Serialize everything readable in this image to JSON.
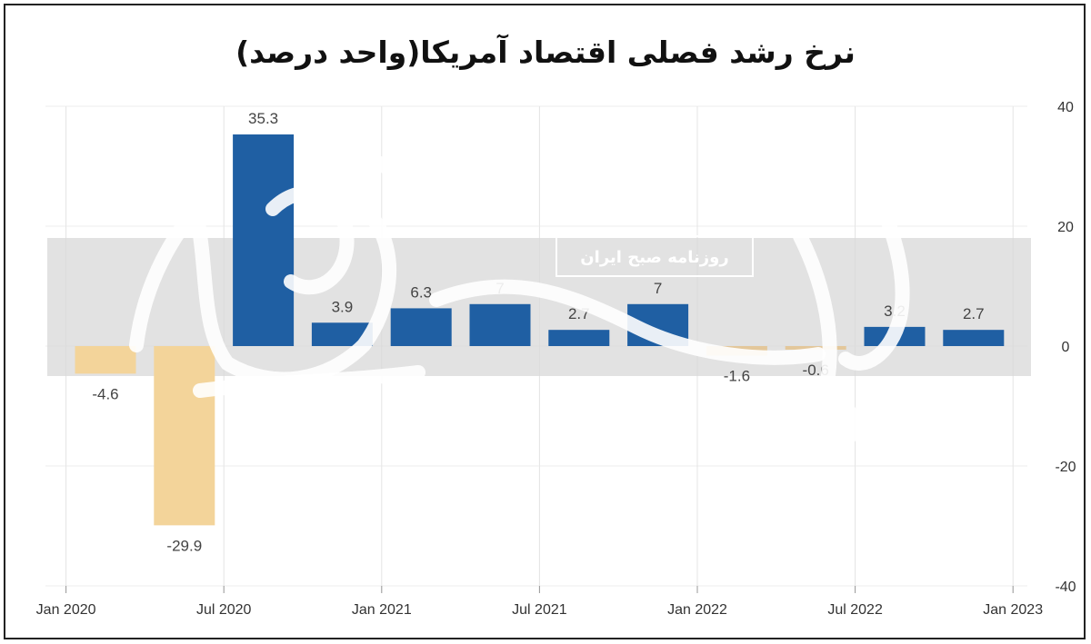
{
  "title": "نرخ رشد فصلی اقتصاد آمریکا(واحد درصد)",
  "watermark": {
    "text": "روزنامه صبح ایران"
  },
  "chart_data": {
    "type": "bar",
    "title": "نرخ رشد فصلی اقتصاد آمریکا(واحد درصد)",
    "xlabel": "",
    "ylabel": "",
    "ylim": [
      -40,
      40
    ],
    "yticks": [
      "40",
      "20",
      "0",
      "-20",
      "-40"
    ],
    "ytick_values": [
      40,
      20,
      0,
      -20,
      -40
    ],
    "xticks": [
      "Jan 2020",
      "Jul 2020",
      "Jan 2021",
      "Jul 2021",
      "Jan 2022",
      "Jul 2022",
      "Jan 2023"
    ],
    "grid": "vertical",
    "y_axis_side": "right",
    "colors": {
      "positive": "#1f5fa3",
      "negative": "#f3d49a",
      "negative_small": "#e3c79a"
    },
    "bars": [
      {
        "label": "-4.6",
        "value": -4.6
      },
      {
        "label": "-29.9",
        "value": -29.9
      },
      {
        "label": "35.3",
        "value": 35.3
      },
      {
        "label": "3.9",
        "value": 3.9
      },
      {
        "label": "6.3",
        "value": 6.3
      },
      {
        "label": "7",
        "value": 7
      },
      {
        "label": "2.7",
        "value": 2.7
      },
      {
        "label": "7",
        "value": 7
      },
      {
        "label": "-1.6",
        "value": -1.6
      },
      {
        "label": "-0.6",
        "value": -0.6
      },
      {
        "label": "3.2",
        "value": 3.2
      },
      {
        "label": "2.7",
        "value": 2.7
      }
    ]
  }
}
